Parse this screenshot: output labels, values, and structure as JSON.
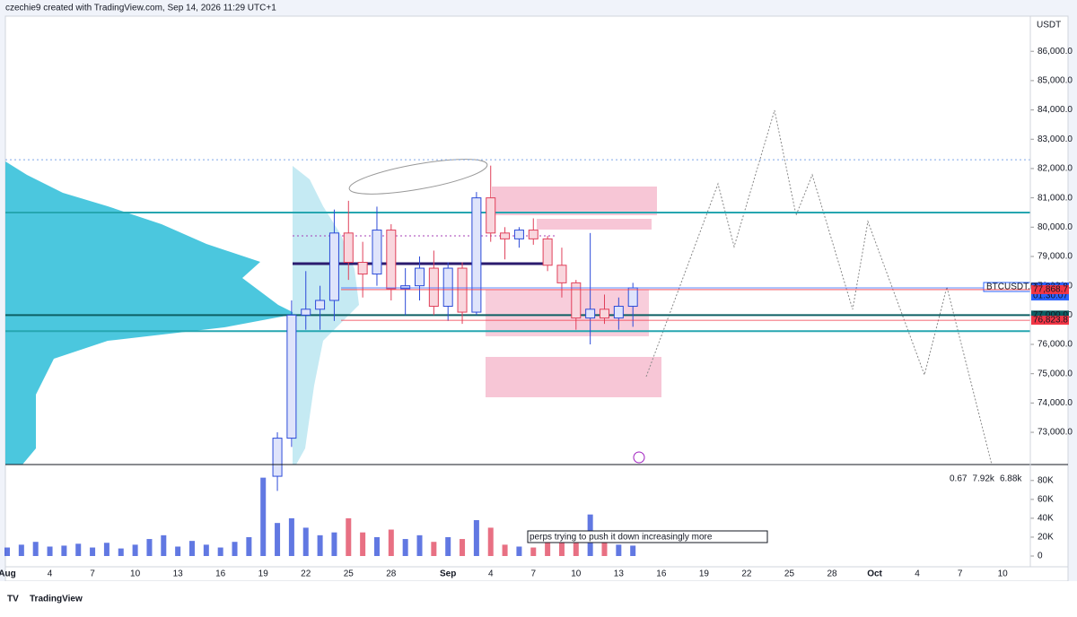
{
  "header": {
    "text": "czechie9 created with TradingView.com, Sep 14, 2026 11:29 UTC+1"
  },
  "footer": {
    "logo": "TradingView"
  },
  "chart_data": {
    "type": "candlestick",
    "currency": "USDT",
    "xlim": [
      "Aug 1",
      "Oct 11"
    ],
    "xticks": [
      {
        "value": "Aug 1",
        "label": "Aug"
      },
      {
        "value": "Aug 4",
        "label": "4"
      },
      {
        "value": "Aug 7",
        "label": "7"
      },
      {
        "value": "Aug 10",
        "label": "10"
      },
      {
        "value": "Aug 13",
        "label": "13"
      },
      {
        "value": "Aug 16",
        "label": "16"
      },
      {
        "value": "Aug 19",
        "label": "19"
      },
      {
        "value": "Aug 22",
        "label": "22"
      },
      {
        "value": "Aug 25",
        "label": "25"
      },
      {
        "value": "Aug 28",
        "label": "28"
      },
      {
        "value": "Sep 1",
        "label": "Sep"
      },
      {
        "value": "Sep 4",
        "label": "4"
      },
      {
        "value": "Sep 7",
        "label": "7"
      },
      {
        "value": "Sep 10",
        "label": "10"
      },
      {
        "value": "Sep 13",
        "label": "13"
      },
      {
        "value": "Sep 16",
        "label": "16"
      },
      {
        "value": "Sep 19",
        "label": "19"
      },
      {
        "value": "Sep 22",
        "label": "22"
      },
      {
        "value": "Sep 25",
        "label": "25"
      },
      {
        "value": "Sep 28",
        "label": "28"
      },
      {
        "value": "Oct 1",
        "label": "Oct"
      },
      {
        "value": "Oct 4",
        "label": "4"
      },
      {
        "value": "Oct 7",
        "label": "7"
      },
      {
        "value": "Oct 10",
        "label": "10"
      }
    ],
    "ylim": [
      71900,
      87200
    ],
    "yticks": [
      {
        "value": 73000,
        "label": "73,000.0"
      },
      {
        "value": 74000,
        "label": "74,000.0"
      },
      {
        "value": 75000,
        "label": "75,000.0"
      },
      {
        "value": 76000,
        "label": "76,000.0"
      },
      {
        "value": 77000,
        "label": "77,000.0"
      },
      {
        "value": 78000,
        "label": "78,000.0"
      },
      {
        "value": 79000,
        "label": "79,000.0"
      },
      {
        "value": 80000,
        "label": "80,000.0"
      },
      {
        "value": 81000,
        "label": "81,000.0"
      },
      {
        "value": 82000,
        "label": "82,000.0"
      },
      {
        "value": 83000,
        "label": "83,000.0"
      },
      {
        "value": 84000,
        "label": "84,000.0"
      },
      {
        "value": 85000,
        "label": "85,000.0"
      },
      {
        "value": 86000,
        "label": "86,000.0"
      }
    ],
    "up_color": "#2c4bd8",
    "down_color": "#e0405a",
    "candles": {
      "x": [
        "Aug 20",
        "Aug 21",
        "Aug 22",
        "Aug 23",
        "Aug 24",
        "Aug 25",
        "Aug 26",
        "Aug 27",
        "Aug 28",
        "Aug 29",
        "Aug 30",
        "Aug 31",
        "Sep 1",
        "Sep 2",
        "Sep 3",
        "Sep 4",
        "Sep 5",
        "Sep 6",
        "Sep 7",
        "Sep 8",
        "Sep 9",
        "Sep 10",
        "Sep 11",
        "Sep 12",
        "Sep 13",
        "Sep 14"
      ],
      "open": [
        71500,
        72800,
        77000,
        77200,
        77500,
        79800,
        78800,
        78400,
        79900,
        77900,
        78000,
        78600,
        77300,
        78600,
        77100,
        81000,
        79800,
        79600,
        79900,
        79600,
        78700,
        78100,
        76900,
        77200,
        76900,
        77300
      ],
      "high": [
        73000,
        77500,
        78500,
        78000,
        80600,
        80900,
        79500,
        80700,
        80100,
        78600,
        79000,
        79200,
        78800,
        78800,
        81200,
        82100,
        80000,
        80000,
        80300,
        79700,
        79300,
        78200,
        79800,
        77700,
        77600,
        78100
      ],
      "low": [
        71000,
        72500,
        76500,
        76500,
        76800,
        78200,
        77600,
        78000,
        77500,
        77000,
        77500,
        77000,
        76800,
        76700,
        77000,
        79500,
        78900,
        79300,
        79400,
        78500,
        77600,
        76500,
        76000,
        76700,
        76500,
        76600
      ],
      "close": [
        72800,
        77000,
        77200,
        77500,
        79800,
        78800,
        78400,
        79900,
        77900,
        78000,
        78600,
        77300,
        78600,
        77100,
        81000,
        79800,
        79600,
        79900,
        79600,
        78700,
        78100,
        76900,
        77200,
        76900,
        77300,
        77927.8
      ]
    },
    "levels": [
      {
        "value": 82300,
        "color": "#7fa8e8",
        "dash": true
      },
      {
        "value": 80500,
        "color": "#26a6b0"
      },
      {
        "value": 77000,
        "color": "#0c5f63"
      },
      {
        "value": 76450,
        "color": "#26a6b0"
      }
    ],
    "price_labels": [
      {
        "name": "BTCUSDT.P",
        "value": 77927.8,
        "label": "77,927.8",
        "time": "01:30:07",
        "color": "#2962ff"
      },
      {
        "value": 77868.7,
        "label": "77,868.7",
        "color": "#f23645"
      },
      {
        "value": 77000,
        "label": "77,000.0",
        "color": "#0c5f63"
      },
      {
        "value": 76823.8,
        "label": "76,823.8",
        "color": "#f23645"
      }
    ],
    "volume": {
      "x": [
        "Aug 1",
        "Aug 2",
        "Aug 3",
        "Aug 4",
        "Aug 5",
        "Aug 6",
        "Aug 7",
        "Aug 8",
        "Aug 9",
        "Aug 10",
        "Aug 11",
        "Aug 12",
        "Aug 13",
        "Aug 14",
        "Aug 15",
        "Aug 16",
        "Aug 17",
        "Aug 18",
        "Aug 19",
        "Aug 20",
        "Aug 21",
        "Aug 22",
        "Aug 23",
        "Aug 24",
        "Aug 25",
        "Aug 26",
        "Aug 27",
        "Aug 28",
        "Aug 29",
        "Aug 30",
        "Aug 31",
        "Sep 1",
        "Sep 2",
        "Sep 3",
        "Sep 4",
        "Sep 5",
        "Sep 6",
        "Sep 7",
        "Sep 8",
        "Sep 9",
        "Sep 10",
        "Sep 11",
        "Sep 12",
        "Sep 13",
        "Sep 14"
      ],
      "values": [
        9000,
        12000,
        15000,
        10000,
        11000,
        13000,
        9000,
        14000,
        8000,
        12000,
        18000,
        22000,
        10000,
        16000,
        12000,
        9000,
        15000,
        20000,
        83000,
        35000,
        40000,
        30000,
        22000,
        25000,
        40000,
        25000,
        20000,
        28000,
        18000,
        22000,
        15000,
        20000,
        18000,
        38000,
        30000,
        12000,
        10000,
        9000,
        14000,
        15000,
        22000,
        44000,
        25000,
        12000,
        11000
      ],
      "ylim": [
        -11400,
        95000
      ],
      "yticks": [
        0,
        {
          "value": 20000,
          "label": "20K"
        },
        {
          "value": 40000,
          "label": "40K"
        },
        {
          "value": 60000,
          "label": "60K"
        },
        {
          "value": 80000,
          "label": "80K"
        }
      ],
      "legend": [
        {
          "value": 0.67,
          "color": "#f5d76e"
        },
        {
          "value": {
            "value": 7920,
            "label": "7.92k"
          },
          "color": "#2962ff"
        },
        {
          "value": {
            "value": 6880,
            "label": "6.88k"
          },
          "color": "#26a6b0"
        }
      ]
    },
    "annotation": "perps trying to push it down increasingly more"
  }
}
